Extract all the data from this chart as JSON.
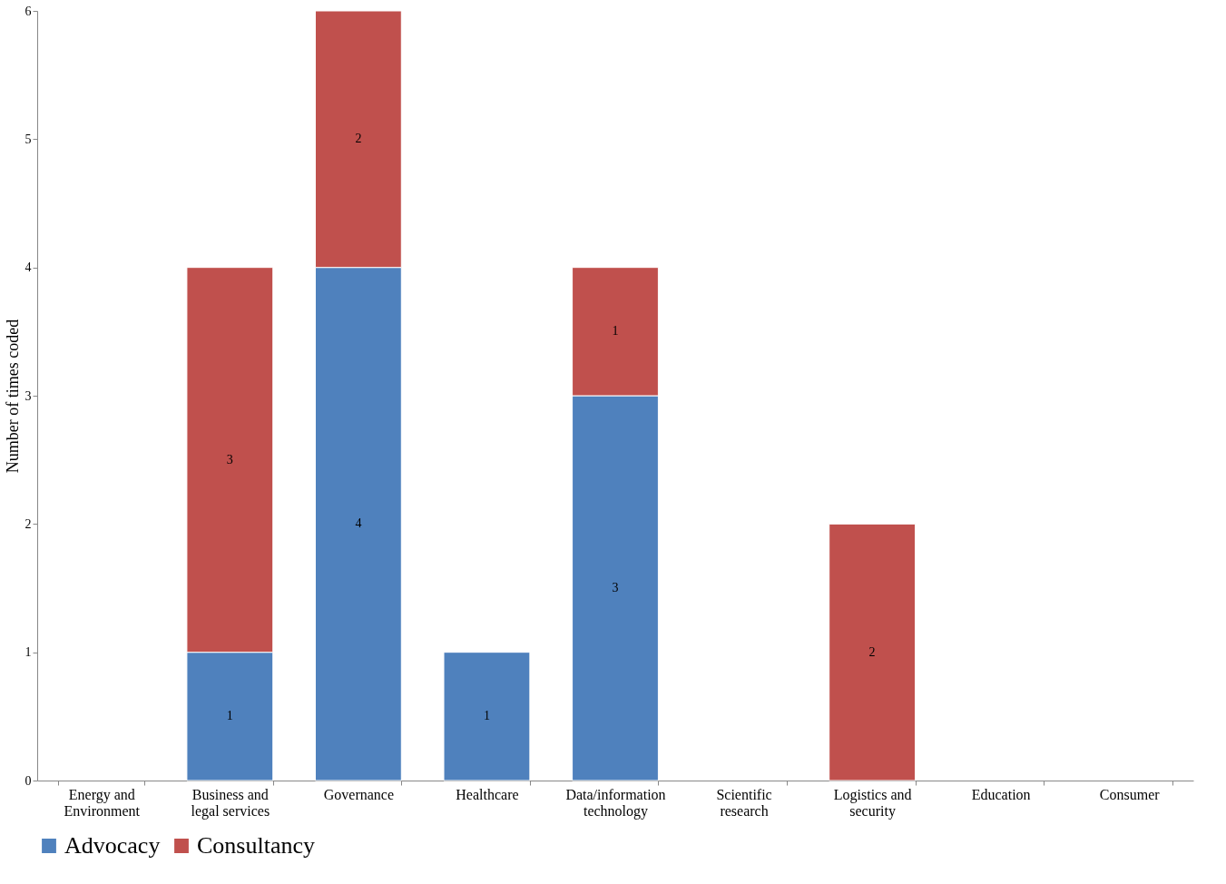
{
  "chart_data": {
    "type": "bar",
    "stacked": true,
    "ylabel": "Number of times coded",
    "categories": [
      "Energy and Environment",
      "Business and legal services",
      "Governance",
      "Healthcare",
      "Data/information technology",
      "Scientific research",
      "Logistics and security",
      "Education",
      "Consumer"
    ],
    "series": [
      {
        "name": "Advocacy",
        "color": "#4f81bd",
        "values": [
          null,
          1,
          4,
          1,
          3,
          null,
          null,
          null,
          null
        ]
      },
      {
        "name": "Consultancy",
        "color": "#c0504d",
        "values": [
          null,
          3,
          2,
          null,
          1,
          null,
          2,
          null,
          null
        ]
      }
    ],
    "ylim": [
      0,
      6
    ],
    "yticks": [
      0,
      1,
      2,
      3,
      4,
      5,
      6
    ],
    "grid": false,
    "legend": "bottom",
    "data_labels": true
  }
}
